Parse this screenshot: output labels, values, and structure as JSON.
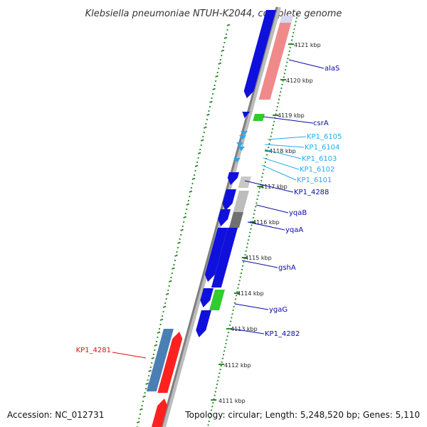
{
  "title": "Klebsiella pneumoniae NTUH-K2044, complete genome",
  "footer": {
    "accession": "Accession: NC_012731",
    "topology": "Topology: circular; Length: 5,248,520 bp; Genes: 5,110"
  },
  "colors": {
    "backbone": "#8a8a8a",
    "tick_green": "#2a8a2a",
    "cds_blue": "#1010dd",
    "cds_red": "#ff2020",
    "cds_green": "#30cc30",
    "cds_steel": "#4a7fb5",
    "cds_gray": "#a8a8a8",
    "rna_cyan": "#22aaee",
    "label_blue": "#0a0aaa",
    "label_red": "#dd1111",
    "label_cyan": "#22aaee"
  },
  "kbp_ticks": [
    "4121 kbp",
    "4120 kbp",
    "4119 kbp",
    "4118 kbp",
    "4117 kbp",
    "4116 kbp",
    "4115 kbp",
    "4114 kbp",
    "4113 kbp",
    "4112 kbp",
    "4111 kbp"
  ],
  "gene_labels": [
    {
      "name": "alaS",
      "color": "blue"
    },
    {
      "name": "csrA",
      "color": "blue"
    },
    {
      "name": "KP1_6105",
      "color": "cyan"
    },
    {
      "name": "KP1_6104",
      "color": "cyan"
    },
    {
      "name": "KP1_6103",
      "color": "cyan"
    },
    {
      "name": "KP1_6102",
      "color": "cyan"
    },
    {
      "name": "KP1_6101",
      "color": "cyan"
    },
    {
      "name": "KP1_4288",
      "color": "blue"
    },
    {
      "name": "yqaB",
      "color": "blue"
    },
    {
      "name": "yqaA",
      "color": "blue"
    },
    {
      "name": "gshA",
      "color": "blue"
    },
    {
      "name": "ygaG",
      "color": "blue"
    },
    {
      "name": "KP1_4282",
      "color": "blue"
    },
    {
      "name": "KP1_4281",
      "color": "red"
    }
  ]
}
